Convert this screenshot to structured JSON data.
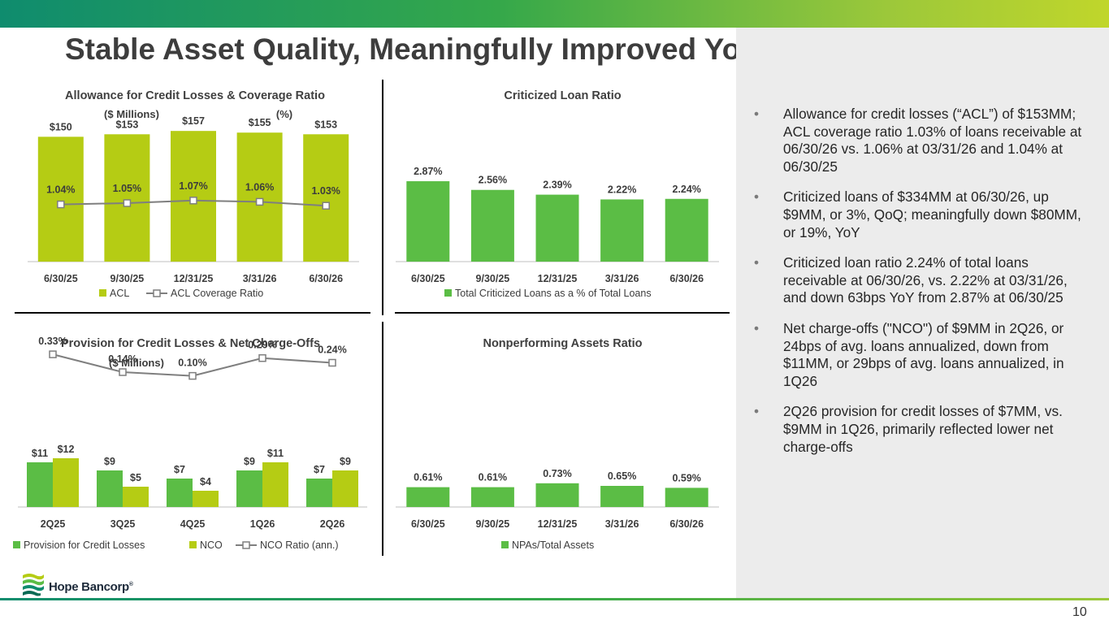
{
  "title": "Stable Asset Quality, Meaningfully Improved YoY",
  "page_number": "10",
  "logo": {
    "text": "Hope Bancorp",
    "mark": "®"
  },
  "colors": {
    "green": "#5bbd45",
    "lime": "#b5cc14",
    "line_gray": "#7f7f7f",
    "panel_gray": "#ececec"
  },
  "bullets": [
    "Allowance for credit losses (“ACL”) of $153MM; ACL coverage ratio 1.03% of loans receivable at 06/30/26 vs. 1.06% at 03/31/26 and 1.04% at 06/30/25",
    "Criticized loans of $334MM at 06/30/26, up $9MM, or 3%, QoQ; meaningfully down $80MM, or 19%, YoY",
    "Criticized loan ratio 2.24% of total loans receivable at 06/30/26, vs. 2.22% at 03/31/26, and down 63bps YoY from 2.87% at 06/30/25",
    "Net charge-offs (\"NCO\") of $9MM in 2Q26, or 24bps of avg. loans annualized, down from $11MM, or 29bps of avg. loans annualized, in 1Q26",
    "2Q26 provision for credit losses of $7MM, vs. $9MM in 1Q26, primarily reflected lower net charge-offs"
  ],
  "chart_data": [
    {
      "type": "bar",
      "title": "Allowance for Credit Losses & Coverage Ratio",
      "subtitle_left": "($ Millions)",
      "subtitle_right": "(%)",
      "categories": [
        "6/30/25",
        "9/30/25",
        "12/31/25",
        "3/31/26",
        "6/30/26"
      ],
      "series": [
        {
          "name": "ACL",
          "kind": "bar",
          "color": "#b5cc14",
          "values": [
            150,
            153,
            157,
            155,
            153
          ],
          "labels": [
            "$150",
            "$153",
            "$157",
            "$155",
            "$153"
          ]
        },
        {
          "name": "ACL Coverage Ratio",
          "kind": "line",
          "color": "#7f7f7f",
          "values": [
            1.04,
            1.05,
            1.07,
            1.06,
            1.03
          ],
          "labels": [
            "1.04%",
            "1.05%",
            "1.07%",
            "1.06%",
            "1.03%"
          ]
        }
      ],
      "legend": "bottom"
    },
    {
      "type": "bar",
      "title": "Criticized Loan Ratio",
      "categories": [
        "6/30/25",
        "9/30/25",
        "12/31/25",
        "3/31/26",
        "6/30/26"
      ],
      "series": [
        {
          "name": "Total Criticized Loans as a % of Total Loans",
          "kind": "bar",
          "color": "#5bbd45",
          "values": [
            2.87,
            2.56,
            2.39,
            2.22,
            2.24
          ],
          "labels": [
            "2.87%",
            "2.56%",
            "2.39%",
            "2.22%",
            "2.24%"
          ]
        }
      ],
      "legend": "bottom"
    },
    {
      "type": "bar",
      "title": "Provision for Credit Losses & Net Charge-Offs",
      "subtitle_left": "($ Millions)",
      "categories": [
        "2Q25",
        "3Q25",
        "4Q25",
        "1Q26",
        "2Q26"
      ],
      "series": [
        {
          "name": "Provision for Credit Losses",
          "kind": "bar",
          "color": "#5bbd45",
          "values": [
            11,
            9,
            7,
            9,
            7
          ],
          "labels": [
            "$11",
            "$9",
            "$7",
            "$9",
            "$7"
          ]
        },
        {
          "name": "NCO",
          "kind": "bar",
          "color": "#b5cc14",
          "values": [
            12,
            5,
            4,
            11,
            9
          ],
          "labels": [
            "$12",
            "$5",
            "$4",
            "$11",
            "$9"
          ]
        },
        {
          "name": "NCO Ratio (ann.)",
          "kind": "line",
          "color": "#7f7f7f",
          "values": [
            0.33,
            0.14,
            0.1,
            0.29,
            0.24
          ],
          "labels": [
            "0.33%",
            "0.14%",
            "0.10%",
            "0.29%",
            "0.24%"
          ]
        }
      ],
      "legend": "bottom"
    },
    {
      "type": "bar",
      "title": "Nonperforming Assets Ratio",
      "categories": [
        "6/30/25",
        "9/30/25",
        "12/31/25",
        "3/31/26",
        "6/30/26"
      ],
      "series": [
        {
          "name": "NPAs/Total Assets",
          "kind": "bar",
          "color": "#5bbd45",
          "values": [
            0.61,
            0.61,
            0.73,
            0.65,
            0.59
          ],
          "labels": [
            "0.61%",
            "0.61%",
            "0.73%",
            "0.65%",
            "0.59%"
          ]
        }
      ],
      "legend": "bottom"
    }
  ]
}
